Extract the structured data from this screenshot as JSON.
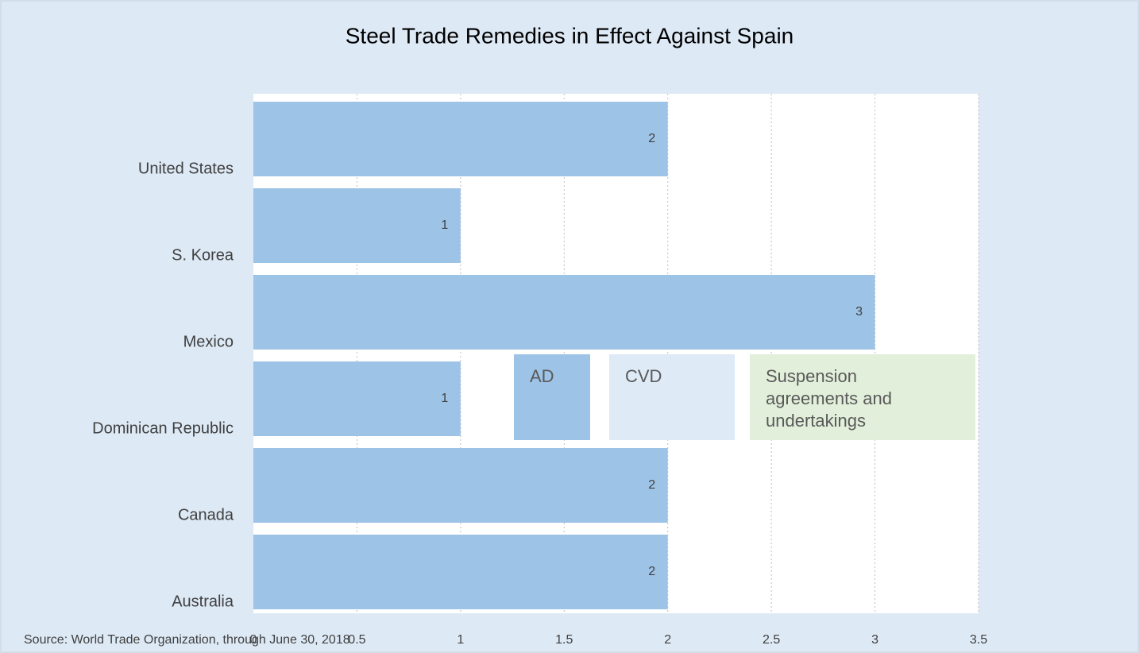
{
  "chart_data": {
    "type": "bar",
    "orientation": "horizontal",
    "stacked": true,
    "title": "Steel Trade Remedies in Effect Against Spain",
    "source": "Source: World Trade Organization, through June 30, 2018",
    "categories": [
      "United States",
      "S. Korea",
      "Mexico",
      "Dominican Republic",
      "Canada",
      "Australia"
    ],
    "series": [
      {
        "name": "AD",
        "color": "#9dc3e6",
        "values": [
          2,
          1,
          3,
          1,
          2,
          2
        ]
      },
      {
        "name": "CVD",
        "color": "#deeaf6",
        "values": [
          0,
          0,
          0,
          0,
          0,
          0
        ]
      },
      {
        "name": "Suspension agreements and undertakings",
        "color": "#e2efda",
        "values": [
          0,
          0,
          0,
          0,
          0,
          0
        ]
      }
    ],
    "xlim": [
      0,
      3.5
    ],
    "xticks": [
      0,
      0.5,
      1,
      1.5,
      2,
      2.5,
      3,
      3.5
    ],
    "grid": true
  }
}
